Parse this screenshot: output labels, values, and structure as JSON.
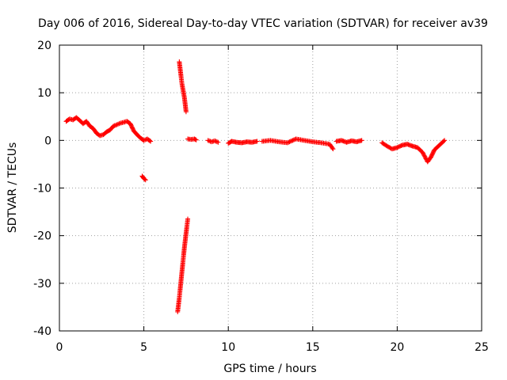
{
  "chart_data": {
    "type": "scatter",
    "title": "Day 006 of 2016, Sidereal Day-to-day VTEC variation (SDTVAR) for receiver av39",
    "xlabel": "GPS time / hours",
    "ylabel": "SDTVAR / TECUs",
    "xlim": [
      0,
      25
    ],
    "ylim": [
      -40,
      20
    ],
    "xticks": [
      0,
      5,
      10,
      15,
      20,
      25
    ],
    "yticks": [
      -40,
      -30,
      -20,
      -10,
      0,
      10,
      20
    ],
    "grid": true,
    "marker": "plus",
    "color": "#ff0000",
    "series": [
      {
        "name": "SDTVAR",
        "segments": [
          {
            "x": [
              0.4,
              0.6,
              0.8,
              1.0,
              1.2,
              1.4,
              1.6,
              1.8,
              2.0,
              2.2,
              2.4,
              2.6,
              2.8,
              3.0,
              3.2,
              3.4,
              3.6,
              3.8,
              4.0,
              4.2,
              4.4,
              4.6,
              4.8,
              5.0,
              5.2,
              5.4
            ],
            "y": [
              4.0,
              4.5,
              4.3,
              4.8,
              4.2,
              3.5,
              4.0,
              3.0,
              2.5,
              1.5,
              1.0,
              1.2,
              1.8,
              2.2,
              3.0,
              3.3,
              3.6,
              3.8,
              4.0,
              3.5,
              2.0,
              1.2,
              0.5,
              0.0,
              0.3,
              -0.2
            ]
          },
          {
            "x": [
              4.9,
              5.0,
              5.1
            ],
            "y": [
              -7.5,
              -8.0,
              -8.3
            ]
          },
          {
            "x": [
              7.1,
              7.15,
              7.2,
              7.25,
              7.3,
              7.35,
              7.4,
              7.45,
              7.5
            ],
            "y": [
              16.5,
              15.0,
              13.5,
              12.0,
              11.0,
              10.0,
              9.0,
              7.5,
              6.0
            ]
          },
          {
            "x": [
              7.0,
              7.1,
              7.2,
              7.3,
              7.4,
              7.5,
              7.6
            ],
            "y": [
              -36.0,
              -33.0,
              -29.5,
              -26.0,
              -22.5,
              -19.5,
              -16.5
            ]
          },
          {
            "x": [
              7.6,
              7.8,
              8.0,
              8.1
            ],
            "y": [
              0.3,
              0.2,
              0.3,
              0.1
            ]
          },
          {
            "x": [
              8.8,
              9.0,
              9.2,
              9.4
            ],
            "y": [
              0.0,
              -0.3,
              -0.1,
              -0.4
            ]
          },
          {
            "x": [
              10.0,
              10.2,
              10.5,
              10.8,
              11.1,
              11.4,
              11.7
            ],
            "y": [
              -0.6,
              -0.2,
              -0.4,
              -0.5,
              -0.3,
              -0.4,
              -0.2
            ]
          },
          {
            "x": [
              12.0,
              12.5,
              13.0,
              13.5,
              14.0,
              14.5,
              15.0,
              15.5,
              16.0,
              16.2
            ],
            "y": [
              -0.2,
              0.0,
              -0.3,
              -0.5,
              0.3,
              0.0,
              -0.3,
              -0.5,
              -0.8,
              -1.8
            ]
          },
          {
            "x": [
              16.4,
              16.7,
              17.0,
              17.3,
              17.6,
              17.9
            ],
            "y": [
              -0.2,
              0.0,
              -0.4,
              -0.1,
              -0.3,
              0.0
            ]
          },
          {
            "x": [
              19.1,
              19.4,
              19.7,
              20.0,
              20.3,
              20.6,
              20.9,
              21.2,
              21.5,
              21.8,
              22.0,
              22.2,
              22.5,
              22.8
            ],
            "y": [
              -0.5,
              -1.2,
              -1.8,
              -1.5,
              -1.0,
              -0.8,
              -1.2,
              -1.5,
              -2.5,
              -4.5,
              -3.5,
              -2.0,
              -1.0,
              0.0
            ]
          }
        ]
      }
    ]
  }
}
